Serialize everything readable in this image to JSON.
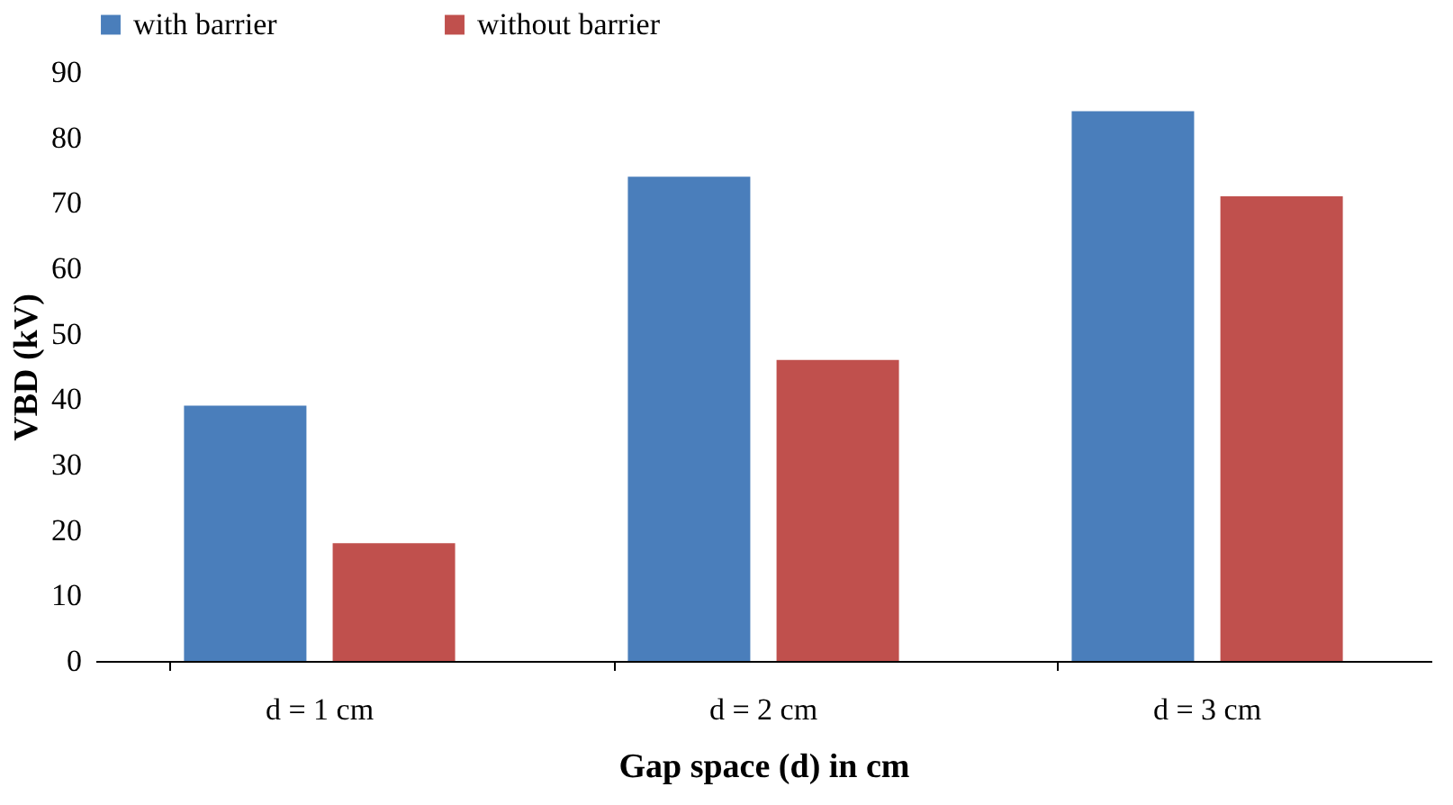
{
  "chart_data": {
    "type": "bar",
    "xlabel": "Gap space (d) in cm",
    "ylabel": "VBD (kV)",
    "categories": [
      "d = 1 cm",
      "d = 2 cm",
      "d = 3 cm"
    ],
    "series": [
      {
        "name": "with barrier",
        "color": "#4a7ebb",
        "values": [
          39,
          74,
          84
        ]
      },
      {
        "name": "without barrier",
        "color": "#c0504d",
        "values": [
          18,
          46,
          71
        ]
      }
    ],
    "ylim": [
      0,
      90
    ],
    "yticks": [
      0,
      10,
      20,
      30,
      40,
      50,
      60,
      70,
      80,
      90
    ],
    "grid": false,
    "legend": "top"
  }
}
